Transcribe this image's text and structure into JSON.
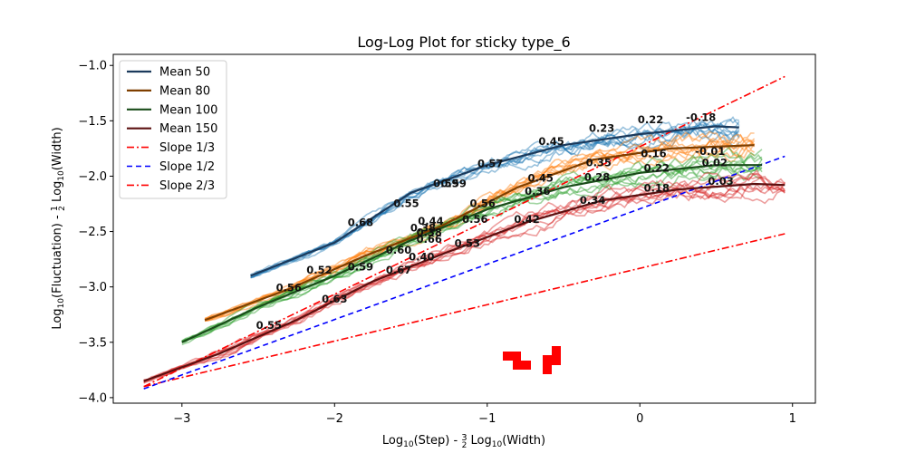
{
  "chart_data": {
    "type": "line",
    "title": "Log-Log Plot for sticky type_6",
    "xlabel": "Log10(Step) - 3/2 Log10(Width)",
    "ylabel": "Log10(Fluctuation) - 1/2 Log10(Width)",
    "xlim": [
      -3.45,
      1.15
    ],
    "ylim": [
      -4.05,
      -0.9
    ],
    "xticks": [
      -3,
      -2,
      -1,
      0,
      1
    ],
    "yticks": [
      -4.0,
      -3.5,
      -3.0,
      -2.5,
      -2.0,
      -1.5,
      -1.0
    ],
    "xtick_labels": [
      "−3",
      "−2",
      "−1",
      "0",
      "1"
    ],
    "ytick_labels": [
      "−4.0",
      "−3.5",
      "−3.0",
      "−2.5",
      "−2.0",
      "−1.5",
      "−1.0"
    ],
    "grid": false,
    "legend_position": "top-left",
    "series": [
      {
        "name": "Mean 50",
        "kind": "mean",
        "color": "#1b3a5c",
        "band_color": "#1f77b4",
        "x": [
          -2.55,
          -2.0,
          -1.5,
          -1.0,
          -0.5,
          0.0,
          0.5,
          0.65
        ],
        "y": [
          -2.9,
          -2.6,
          -2.15,
          -1.9,
          -1.72,
          -1.62,
          -1.55,
          -1.56
        ]
      },
      {
        "name": "Mean 80",
        "kind": "mean",
        "color": "#7f3f00",
        "band_color": "#ff7f0e",
        "x": [
          -2.85,
          -2.3,
          -1.8,
          -1.3,
          -0.8,
          -0.3,
          0.2,
          0.75
        ],
        "y": [
          -3.3,
          -3.02,
          -2.72,
          -2.45,
          -2.1,
          -1.85,
          -1.75,
          -1.72
        ]
      },
      {
        "name": "Mean 100",
        "kind": "mean",
        "color": "#1a4d1a",
        "band_color": "#2ca02c",
        "x": [
          -3.0,
          -2.5,
          -2.0,
          -1.5,
          -1.0,
          -0.5,
          0.0,
          0.5,
          0.8
        ],
        "y": [
          -3.5,
          -3.18,
          -2.9,
          -2.58,
          -2.3,
          -2.1,
          -1.97,
          -1.9,
          -1.9
        ]
      },
      {
        "name": "Mean 150",
        "kind": "mean",
        "color": "#5c1010",
        "band_color": "#d62728",
        "x": [
          -3.25,
          -2.75,
          -2.25,
          -1.75,
          -1.25,
          -0.75,
          -0.25,
          0.25,
          0.75,
          0.95
        ],
        "y": [
          -3.85,
          -3.6,
          -3.3,
          -2.95,
          -2.68,
          -2.42,
          -2.22,
          -2.12,
          -2.07,
          -2.08
        ]
      },
      {
        "name": "Slope 1/3",
        "kind": "ref",
        "color": "#ff0000",
        "dash": "dashdot",
        "x": [
          -3.25,
          0.95
        ],
        "y": [
          -3.9,
          -2.52
        ]
      },
      {
        "name": "Slope 1/2",
        "kind": "ref",
        "color": "#0000ff",
        "dash": "dashed",
        "x": [
          -3.25,
          0.95
        ],
        "y": [
          -3.92,
          -1.82
        ]
      },
      {
        "name": "Slope 2/3",
        "kind": "ref",
        "color": "#ff0000",
        "dash": "dashdot",
        "x": [
          -3.25,
          0.95
        ],
        "y": [
          -3.9,
          -1.1
        ]
      }
    ],
    "annotations": [
      {
        "text": "0.68",
        "x": -1.83,
        "y": -2.45
      },
      {
        "text": "0.55",
        "x": -1.53,
        "y": -2.28
      },
      {
        "text": "0.59",
        "x": -1.27,
        "y": -2.1
      },
      {
        "text": "0.59",
        "x": -1.22,
        "y": -2.1
      },
      {
        "text": "0.57",
        "x": -0.98,
        "y": -1.92
      },
      {
        "text": "0.45",
        "x": -0.58,
        "y": -1.72
      },
      {
        "text": "0.23",
        "x": -0.25,
        "y": -1.6
      },
      {
        "text": "0.22",
        "x": 0.07,
        "y": -1.52
      },
      {
        "text": "-0.18",
        "x": 0.4,
        "y": -1.5
      },
      {
        "text": "0.44",
        "x": -1.37,
        "y": -2.44
      },
      {
        "text": "0.38",
        "x": -1.38,
        "y": -2.54
      },
      {
        "text": "0.38",
        "x": -1.42,
        "y": -2.5
      },
      {
        "text": "0.56",
        "x": -1.03,
        "y": -2.28
      },
      {
        "text": "0.45",
        "x": -0.65,
        "y": -2.05
      },
      {
        "text": "0.35",
        "x": -0.27,
        "y": -1.91
      },
      {
        "text": "0.16",
        "x": 0.09,
        "y": -1.83
      },
      {
        "text": "-0.01",
        "x": 0.46,
        "y": -1.81
      },
      {
        "text": "0.60",
        "x": -1.58,
        "y": -2.7
      },
      {
        "text": "0.66",
        "x": -1.38,
        "y": -2.6
      },
      {
        "text": "0.56",
        "x": -1.08,
        "y": -2.42
      },
      {
        "text": "0.36",
        "x": -0.67,
        "y": -2.17
      },
      {
        "text": "0.28",
        "x": -0.28,
        "y": -2.04
      },
      {
        "text": "0.22",
        "x": 0.11,
        "y": -1.96
      },
      {
        "text": "0.02",
        "x": 0.49,
        "y": -1.91
      },
      {
        "text": "0.52",
        "x": -2.1,
        "y": -2.88
      },
      {
        "text": "0.59",
        "x": -1.83,
        "y": -2.85
      },
      {
        "text": "0.40",
        "x": -1.43,
        "y": -2.76
      },
      {
        "text": "0.67",
        "x": -1.58,
        "y": -2.88
      },
      {
        "text": "0.56",
        "x": -2.3,
        "y": -3.04
      },
      {
        "text": "0.53",
        "x": -1.13,
        "y": -2.64
      },
      {
        "text": "0.42",
        "x": -0.74,
        "y": -2.42
      },
      {
        "text": "0.34",
        "x": -0.31,
        "y": -2.25
      },
      {
        "text": "0.18",
        "x": 0.11,
        "y": -2.14
      },
      {
        "text": "0.03",
        "x": 0.53,
        "y": -2.08
      },
      {
        "text": "0.63",
        "x": -2.0,
        "y": -3.14
      },
      {
        "text": "0.55",
        "x": -2.43,
        "y": -3.38
      }
    ]
  }
}
